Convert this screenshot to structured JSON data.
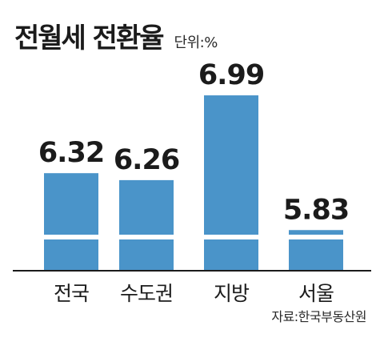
{
  "title": "전월세 전환율",
  "unit": "단위:%",
  "source": "자료:한국부동산원",
  "colors": {
    "bar": "#4a94c9",
    "baseline": "#1b1b1b",
    "break": "#ffffff"
  },
  "chart_data": {
    "type": "bar",
    "title": "전월세 전환율",
    "categories": [
      "전국",
      "수도권",
      "지방",
      "서울"
    ],
    "values": [
      6.32,
      6.26,
      6.99,
      5.83
    ],
    "value_labels": [
      "6.32",
      "6.26",
      "6.99",
      "5.83"
    ],
    "axis_break": true
  }
}
